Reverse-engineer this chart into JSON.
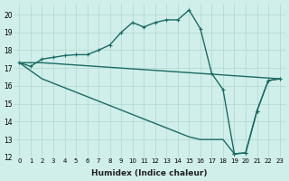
{
  "xlabel": "Humidex (Indice chaleur)",
  "bg_color": "#d0eeea",
  "grid_color": "#b0d8d0",
  "line_color": "#1a6b65",
  "xlim": [
    -0.5,
    23.5
  ],
  "ylim": [
    12,
    20.6
  ],
  "xticks": [
    0,
    1,
    2,
    3,
    4,
    5,
    6,
    7,
    8,
    9,
    10,
    11,
    12,
    13,
    14,
    15,
    16,
    17,
    18,
    19,
    20,
    21,
    22,
    23
  ],
  "yticks": [
    12,
    13,
    14,
    15,
    16,
    17,
    18,
    19,
    20
  ],
  "line1_x": [
    0,
    1,
    2,
    3,
    4,
    5,
    6,
    7,
    8,
    9,
    10,
    11,
    12,
    13,
    14,
    15,
    16,
    17,
    18,
    19,
    20,
    21,
    22,
    23
  ],
  "line1_y": [
    17.3,
    17.1,
    17.5,
    17.6,
    17.7,
    17.75,
    17.75,
    18.0,
    18.3,
    19.0,
    19.55,
    19.3,
    19.55,
    19.7,
    19.7,
    20.25,
    19.2,
    16.7,
    15.8,
    12.2,
    12.25,
    14.6,
    16.3,
    16.4
  ],
  "line2_x": [
    0,
    2,
    23
  ],
  "line2_y": [
    17.3,
    17.3,
    16.4
  ],
  "line3_x": [
    0,
    1,
    2,
    3,
    4,
    5,
    6,
    7,
    8,
    9,
    10,
    11,
    12,
    13,
    14,
    15,
    16,
    17,
    18,
    19,
    20,
    21,
    22,
    23
  ],
  "line3_y": [
    17.3,
    16.85,
    16.4,
    16.15,
    15.9,
    15.65,
    15.4,
    15.15,
    14.9,
    14.65,
    14.4,
    14.15,
    13.9,
    13.65,
    13.4,
    13.15,
    13.0,
    13.0,
    13.0,
    12.2,
    12.25,
    14.6,
    16.3,
    16.4
  ],
  "line1_marker_x": [
    0,
    1,
    2,
    3,
    4,
    5,
    6,
    7,
    8,
    9,
    10,
    11,
    12,
    13,
    14,
    15,
    16,
    17,
    18,
    19,
    20,
    21,
    22,
    23
  ],
  "line3_marker_x": [
    19,
    20,
    21,
    22,
    23
  ]
}
